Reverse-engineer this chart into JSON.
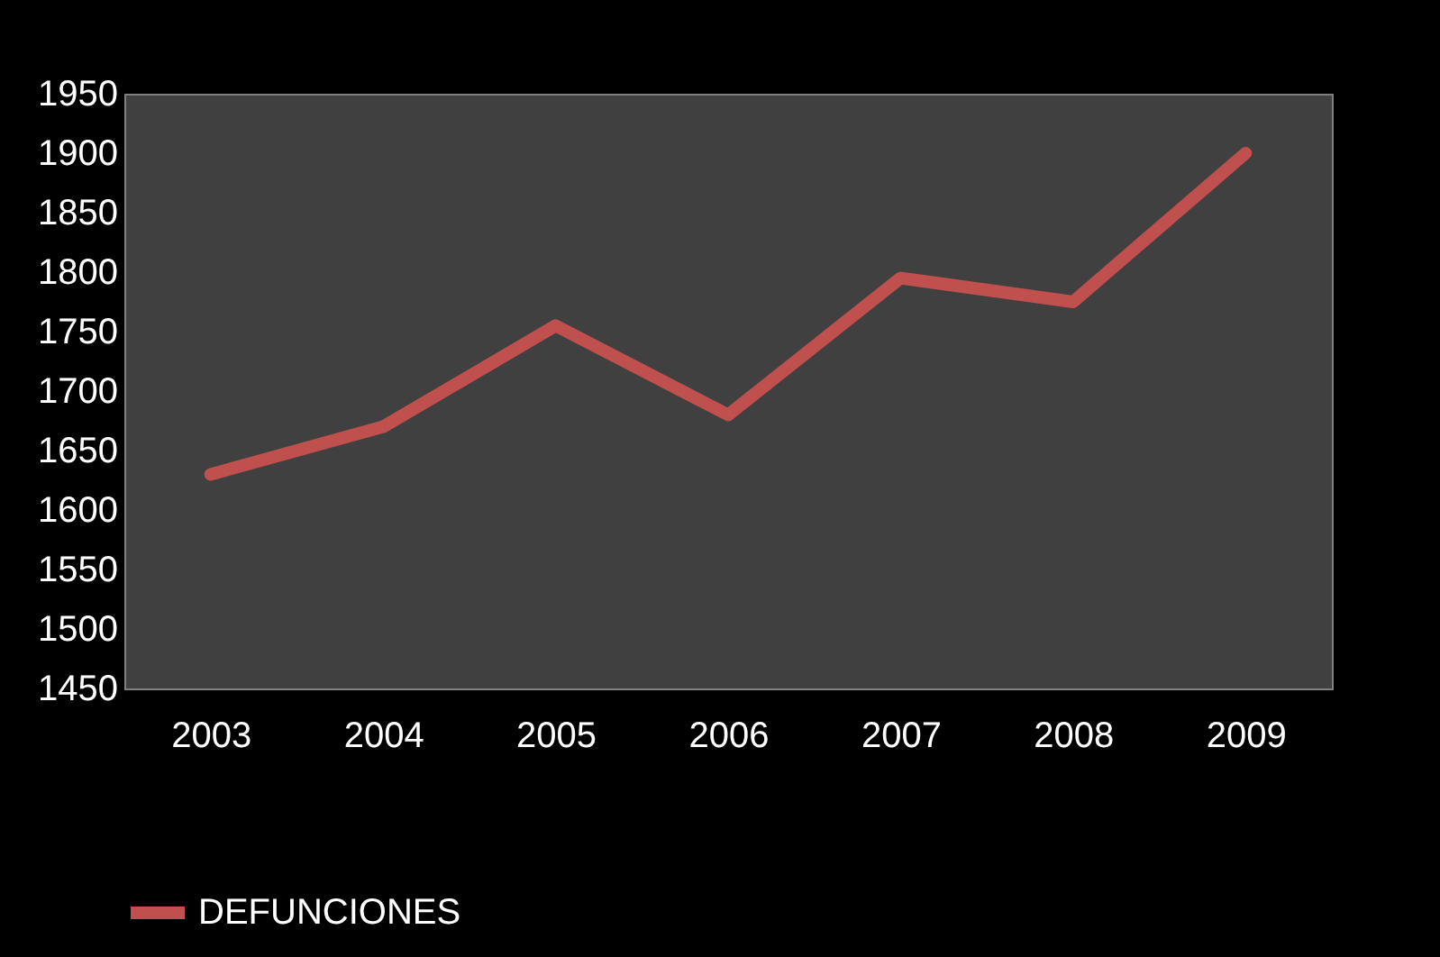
{
  "chart_data": {
    "type": "line",
    "categories": [
      "2003",
      "2004",
      "2005",
      "2006",
      "2007",
      "2008",
      "2009"
    ],
    "series": [
      {
        "name": "DEFUNCIONES",
        "color": "#c0504d",
        "values": [
          1630,
          1670,
          1755,
          1680,
          1795,
          1775,
          1900
        ]
      }
    ],
    "ylim": [
      1450,
      1950
    ],
    "yticks": [
      1450,
      1500,
      1550,
      1600,
      1650,
      1700,
      1750,
      1800,
      1850,
      1900,
      1950
    ],
    "grid": false,
    "legend": "bottom",
    "marker": "none",
    "line_style": "solid"
  }
}
